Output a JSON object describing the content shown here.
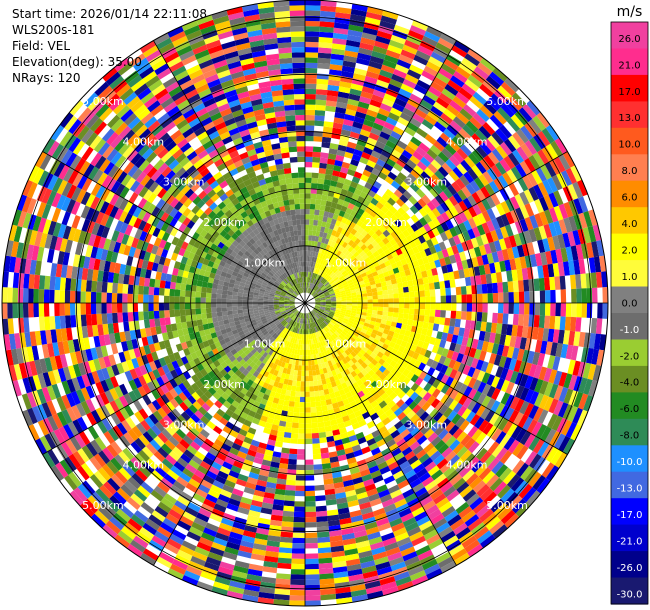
{
  "header": {
    "start_time": "Start time: 2026/01/14 22:11:08",
    "station": "WLS200s-181",
    "field": "Field: VEL",
    "elevation": "Elevation(deg): 35.00",
    "nrays": "NRays: 120"
  },
  "chart_data": {
    "type": "heatmap",
    "projection": "polar-ppi",
    "field": "VEL",
    "unit": "m/s",
    "elevation_deg": 35.0,
    "nrays": 120,
    "range_rings_km": [
      1.0,
      2.0,
      3.0,
      4.0,
      5.0
    ],
    "range_ring_labels": [
      "1.00km",
      "2.00km",
      "3.00km",
      "4.00km",
      "5.00km"
    ],
    "azimuth_lines_deg": [
      0,
      30,
      60,
      90,
      120,
      150,
      180,
      210,
      240,
      270,
      300,
      330
    ],
    "max_range_km": 5.3,
    "colorbar": {
      "title": "m/s",
      "ticks": [
        "26.0",
        "21.0",
        "17.0",
        "13.0",
        "10.0",
        "8.0",
        "6.0",
        "4.0",
        "2.0",
        "1.0",
        "0.0",
        "-1.0",
        "-2.0",
        "-4.0",
        "-6.0",
        "-8.0",
        "-10.0",
        "-13.0",
        "-17.0",
        "-21.0",
        "-26.0",
        "-30.0"
      ],
      "colors": [
        "#f0409f",
        "#ff2d8e",
        "#ff0000",
        "#ff3030",
        "#ff5a1e",
        "#ff7f50",
        "#ff8c00",
        "#ffc800",
        "#ffff00",
        "#fffc3a",
        "#808080",
        "#6d6d6d",
        "#9acd32",
        "#6b8e23",
        "#228b22",
        "#2e8b57",
        "#1e90ff",
        "#4169e1",
        "#0000ff",
        "#0000cd",
        "#00008b",
        "#191970"
      ]
    },
    "pattern": {
      "inner_positive_zone_km": [
        0.6,
        1.6
      ],
      "inner_negative_zone_km": [
        1.2,
        2.3
      ],
      "noise_beyond_km": 2.4
    }
  }
}
